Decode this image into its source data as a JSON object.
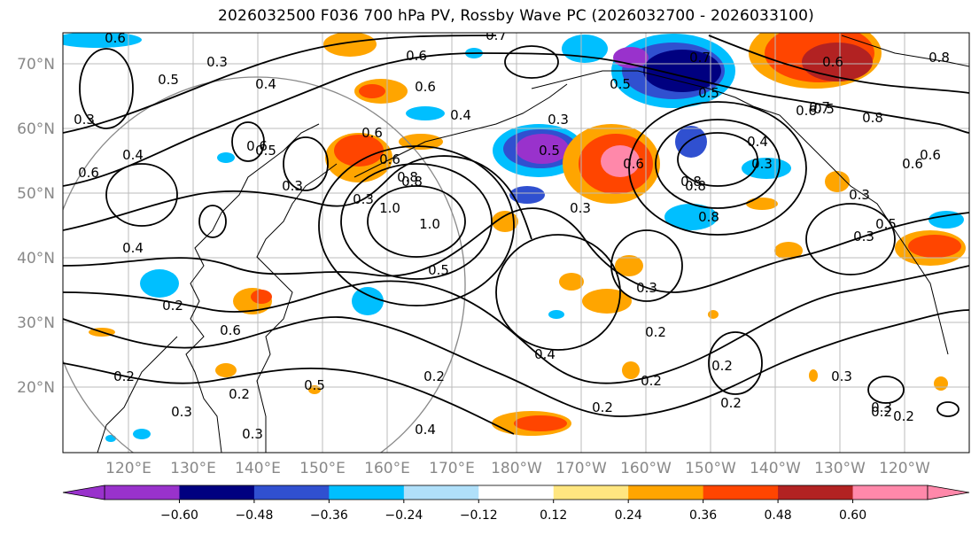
{
  "title": "2026032500 F036 700 hPa PV, Rossby Wave PC (2026032700 - 2026033100)",
  "lat_labels": [
    "70°N",
    "60°N",
    "50°N",
    "40°N",
    "30°N",
    "20°N"
  ],
  "lon_labels": [
    "120°E",
    "130°E",
    "140°E",
    "150°E",
    "160°E",
    "170°E",
    "180°W",
    "170°W",
    "160°W",
    "150°W",
    "140°W",
    "130°W",
    "120°W"
  ],
  "colorbar": {
    "colors": [
      "#9932CC",
      "#000080",
      "#3050D0",
      "#00BFFF",
      "#B0E0FA",
      "#FFFFFF",
      "#FFE680",
      "#FFA500",
      "#FF4500",
      "#B22222",
      "#FF88AA"
    ],
    "labels": [
      "−0.60",
      "−0.48",
      "−0.36",
      "−0.24",
      "−0.12",
      "0.12",
      "0.24",
      "0.36",
      "0.48",
      "0.60"
    ],
    "under_color": "#9932CC",
    "over_color": "#FF88AA"
  },
  "contour_labels": [
    "0.6",
    "0.7",
    "0.6",
    "0.3",
    "0.5",
    "0.7",
    "0.5",
    "0.4",
    "0.6",
    "0.4",
    "0.3",
    "0.5",
    "0.5",
    "0.3",
    "0.6",
    "0.8",
    "1.0",
    "1.0",
    "0.8",
    "0.3",
    "0.6",
    "0.4",
    "0.6",
    "0.3",
    "0.5",
    "0.3",
    "0.5",
    "0.8",
    "0.6",
    "0.8",
    "0.6",
    "0.7",
    "0.6",
    "0.4",
    "0.2",
    "0.8",
    "0.8",
    "0.3",
    "0.3",
    "0.5",
    "0.4",
    "0.3",
    "0.6",
    "0.6",
    "0.2",
    "0.5",
    "0.4",
    "0.3",
    "0.3",
    "0.2",
    "0.2",
    "0.2",
    "0.2",
    "0.2",
    "0.3",
    "0.2",
    "0.2",
    "0.4",
    "0.2",
    "0.3",
    "0.2",
    "0.6",
    "0.5",
    "0.3",
    "0.8",
    "0.6"
  ]
}
